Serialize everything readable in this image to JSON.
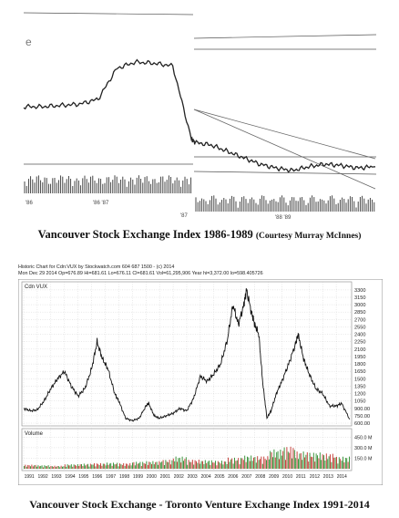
{
  "figure1": {
    "caption_main": "Vancouver Stock Exchange Index  1986-1989",
    "caption_credit": "(Courtesy Murray McInnes)",
    "x_tick_labels": [
      "'86",
      "'86  '87",
      "'87",
      "'88  '89"
    ]
  },
  "figure2": {
    "header_line1": "Historic Chart for Cdn:VUX by Stockwatch.com 604 687 1500 - (c) 2014",
    "header_line2": "Mon Dec 29 2014   Op=676.89  Hi=681.61  Lo=676.11  Cl=681.61  Vol=61,295,906   Year hi=3,372.00  lo=598.405726",
    "price_panel_label": "Cdn VUX",
    "volume_panel_label": "Volume",
    "caption": "Vancouver Stock Exchange - Toronto Venture Exchange Index  1991-2014",
    "y_tick_labels": [
      "3300",
      "3150",
      "3000",
      "2850",
      "2700",
      "2550",
      "2400",
      "2250",
      "2100",
      "1950",
      "1800",
      "1650",
      "1500",
      "1350",
      "1200",
      "1050",
      "900.00",
      "750.00",
      "600.00"
    ],
    "vol_tick_labels": [
      "450.0 M",
      "300.0 M",
      "150.0 M"
    ],
    "year_labels": [
      "1991",
      "1992",
      "1993",
      "1994",
      "1995",
      "1996",
      "1997",
      "1998",
      "1999",
      "2000",
      "2001",
      "2002",
      "2003",
      "2004",
      "2005",
      "2006",
      "2007",
      "2008",
      "2009",
      "2010",
      "2011",
      "2012",
      "2013",
      "2014"
    ]
  },
  "colors": {
    "price_line": "#111111",
    "volume_up": "#2a8a2a",
    "volume_down": "#c0302a",
    "grid": "#c8c8c8",
    "scan_line": "#333333"
  },
  "chart_data": [
    {
      "type": "line",
      "title": "Vancouver Stock Exchange Index  1986-1989",
      "x": [
        "1986-01",
        "1986-04",
        "1986-07",
        "1986-10",
        "1987-01",
        "1987-03",
        "1987-05",
        "1987-07",
        "1987-09",
        "1987-10",
        "1987-11",
        "1988-01",
        "1988-03",
        "1988-05",
        "1988-07",
        "1988-09",
        "1988-11",
        "1989-01",
        "1989-03",
        "1989-05",
        "1989-07",
        "1989-09"
      ],
      "values": [
        0.5,
        0.5,
        0.51,
        0.52,
        0.56,
        0.8,
        0.85,
        0.84,
        0.82,
        0.25,
        0.22,
        0.2,
        0.15,
        0.1,
        0.05,
        0.02,
        0.0,
        0.03,
        0.05,
        0.04,
        0.02,
        0.03
      ],
      "note_values": "relative index level (no y-axis scale printed)",
      "grid": false
    },
    {
      "type": "line",
      "title": "Vancouver Stock Exchange - Toronto Venture Exchange Index  1991-2014",
      "series": [
        {
          "name": "Cdn VUX",
          "values": [
            [
              1991.0,
              900
            ],
            [
              1991.5,
              850
            ],
            [
              1992.0,
              870
            ],
            [
              1992.5,
              1050
            ],
            [
              1993.0,
              1300
            ],
            [
              1993.5,
              1500
            ],
            [
              1994.0,
              1650
            ],
            [
              1994.5,
              1350
            ],
            [
              1995.0,
              1150
            ],
            [
              1995.5,
              1300
            ],
            [
              1996.0,
              1700
            ],
            [
              1996.4,
              2250
            ],
            [
              1996.8,
              1900
            ],
            [
              1997.2,
              1700
            ],
            [
              1997.7,
              1200
            ],
            [
              1998.0,
              1050
            ],
            [
              1998.5,
              700
            ],
            [
              1999.0,
              650
            ],
            [
              1999.5,
              700
            ],
            [
              2000.0,
              950
            ],
            [
              2000.2,
              1000
            ],
            [
              2000.6,
              750
            ],
            [
              2001.0,
              700
            ],
            [
              2001.5,
              750
            ],
            [
              2002.0,
              800
            ],
            [
              2002.5,
              900
            ],
            [
              2003.0,
              850
            ],
            [
              2003.5,
              1100
            ],
            [
              2004.0,
              1550
            ],
            [
              2004.5,
              1450
            ],
            [
              2005.0,
              1600
            ],
            [
              2005.5,
              1800
            ],
            [
              2006.0,
              2300
            ],
            [
              2006.4,
              3000
            ],
            [
              2006.8,
              2600
            ],
            [
              2007.2,
              3000
            ],
            [
              2007.4,
              3300
            ],
            [
              2007.8,
              2800
            ],
            [
              2008.0,
              2600
            ],
            [
              2008.3,
              2400
            ],
            [
              2008.6,
              1400
            ],
            [
              2008.9,
              700
            ],
            [
              2009.2,
              850
            ],
            [
              2009.6,
              1200
            ],
            [
              2010.0,
              1450
            ],
            [
              2010.5,
              1800
            ],
            [
              2011.0,
              2200
            ],
            [
              2011.2,
              2400
            ],
            [
              2011.6,
              1900
            ],
            [
              2012.0,
              1600
            ],
            [
              2012.5,
              1300
            ],
            [
              2013.0,
              1200
            ],
            [
              2013.5,
              950
            ],
            [
              2014.0,
              950
            ],
            [
              2014.4,
              1000
            ],
            [
              2014.99,
              680
            ]
          ]
        }
      ],
      "volume_M": [
        40,
        35,
        30,
        45,
        50,
        55,
        60,
        55,
        70,
        75,
        90,
        120,
        90,
        85,
        80,
        110,
        130,
        125,
        190,
        220,
        170,
        160,
        150,
        120
      ],
      "ylim": [
        600,
        3372
      ],
      "grid": true
    }
  ]
}
